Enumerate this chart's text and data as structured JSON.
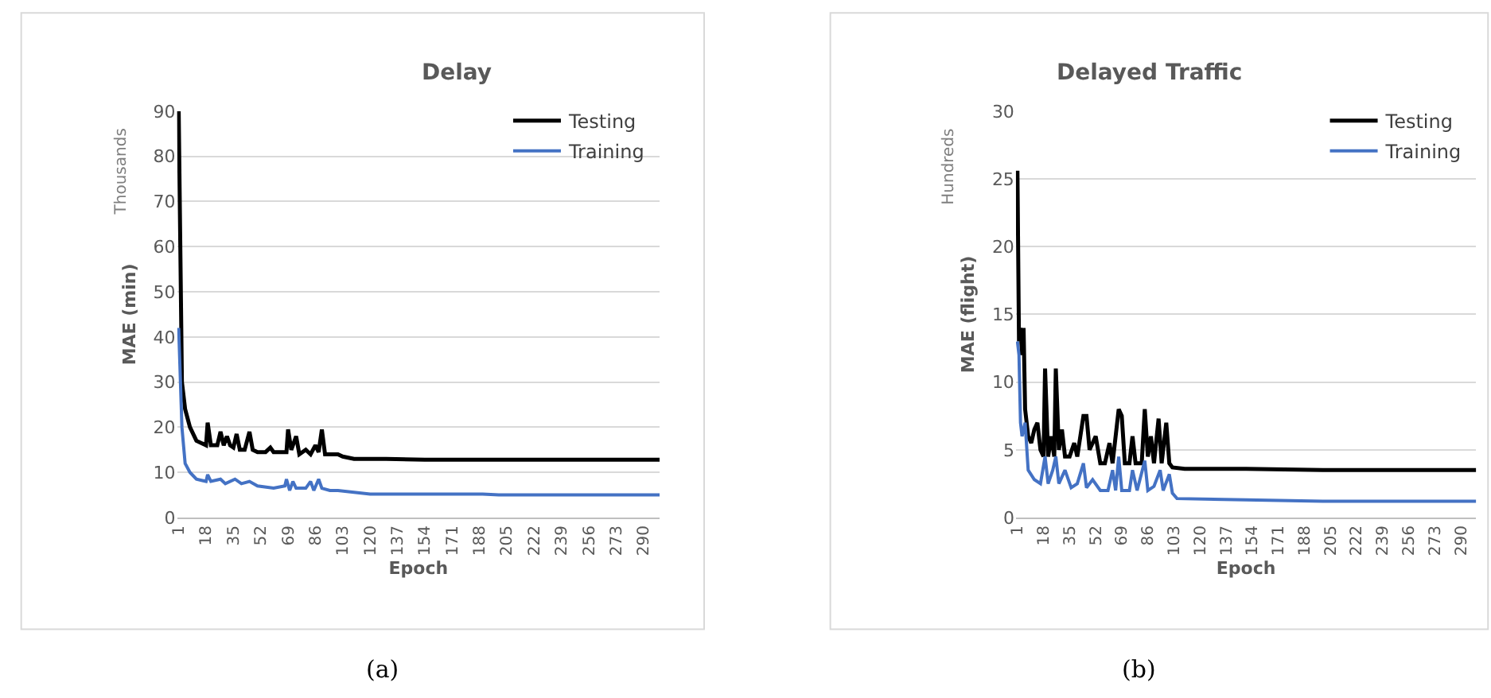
{
  "chart_data": [
    {
      "type": "line",
      "title": "Delay",
      "xlabel": "Epoch",
      "ylabel": "MAE (min)",
      "annotations": [
        "Thousands",
        "(a)"
      ],
      "xlim": [
        0,
        300
      ],
      "xticks": [
        1,
        18,
        35,
        52,
        69,
        86,
        103,
        120,
        137,
        154,
        171,
        188,
        205,
        222,
        239,
        256,
        273,
        290
      ],
      "ylim": [
        0,
        90
      ],
      "yticks": [
        0,
        10,
        20,
        30,
        40,
        50,
        60,
        70,
        80,
        90
      ],
      "grid": "y",
      "legend": "top right",
      "marker": "none",
      "line_style": "solid",
      "series": [
        {
          "name": "Testing",
          "color": "#000000",
          "x": [
            1,
            2,
            3,
            5,
            8,
            12,
            16,
            18,
            19,
            21,
            25,
            27,
            29,
            31,
            33,
            35,
            37,
            39,
            42,
            45,
            47,
            50,
            55,
            58,
            60,
            65,
            68,
            69,
            71,
            74,
            76,
            80,
            83,
            86,
            88,
            90,
            92,
            95,
            100,
            103,
            110,
            130,
            154,
            200,
            250,
            300
          ],
          "values": [
            90,
            44,
            30,
            24,
            20,
            17,
            16.5,
            16,
            21,
            16,
            16,
            19,
            16,
            18,
            16,
            15.5,
            18.5,
            15,
            15,
            19,
            15,
            14.5,
            14.5,
            15.5,
            14.5,
            14.5,
            14.5,
            19.5,
            15,
            18,
            14,
            15,
            14,
            16,
            14.5,
            19.5,
            14,
            14,
            14,
            13.5,
            13,
            13,
            12.8,
            12.8,
            12.8,
            12.8
          ]
        },
        {
          "name": "Training",
          "color": "#4472c4",
          "x": [
            1,
            2,
            3,
            5,
            8,
            12,
            18,
            19,
            21,
            27,
            30,
            36,
            40,
            45,
            50,
            60,
            67,
            68,
            70,
            72,
            74,
            80,
            83,
            85,
            88,
            90,
            95,
            100,
            110,
            120,
            190,
            200,
            300
          ],
          "values": [
            42,
            28,
            20,
            12,
            10,
            8.5,
            8,
            9.5,
            8,
            8.5,
            7.5,
            8.5,
            7.5,
            8,
            7,
            6.5,
            7,
            8.5,
            6,
            8,
            6.5,
            6.5,
            8,
            6,
            8.5,
            6.5,
            6,
            6,
            5.5,
            5.2,
            5.2,
            5,
            5
          ]
        }
      ]
    },
    {
      "type": "line",
      "title": "Delayed Traffic",
      "xlabel": "Epoch",
      "ylabel": "MAE (flight)",
      "annotations": [
        "Hundreds",
        "(b)"
      ],
      "xlim": [
        0,
        300
      ],
      "xticks": [
        1,
        18,
        35,
        52,
        69,
        86,
        103,
        120,
        137,
        154,
        171,
        188,
        205,
        222,
        239,
        256,
        273,
        290
      ],
      "ylim": [
        0,
        30
      ],
      "yticks": [
        0,
        5,
        10,
        15,
        20,
        25,
        30
      ],
      "grid": "y",
      "legend": "top right",
      "marker": "none",
      "line_style": "solid",
      "series": [
        {
          "name": "Testing",
          "color": "#000000",
          "x": [
            1,
            2,
            3,
            4,
            5,
            6,
            8,
            10,
            12,
            14,
            16,
            18,
            19,
            21,
            23,
            25,
            26,
            28,
            30,
            32,
            35,
            38,
            40,
            44,
            46,
            48,
            52,
            55,
            58,
            61,
            63,
            67,
            69,
            71,
            74,
            76,
            78,
            82,
            84,
            86,
            88,
            90,
            93,
            95,
            98,
            100,
            102,
            110,
            150,
            200,
            250,
            300
          ],
          "values": [
            25.6,
            13,
            14,
            12,
            14,
            8,
            6,
            5.5,
            6.5,
            7,
            5,
            4.5,
            11,
            4.5,
            6,
            4.5,
            11,
            5,
            6.5,
            4.5,
            4.5,
            5.5,
            4.5,
            7.5,
            7.5,
            5,
            6,
            4,
            4,
            5.5,
            4,
            8,
            7.5,
            4,
            4,
            6,
            4,
            4,
            8,
            4.5,
            6,
            4,
            7.3,
            4,
            7,
            4,
            3.7,
            3.6,
            3.6,
            3.5,
            3.5,
            3.5
          ]
        },
        {
          "name": "Training",
          "color": "#4472c4",
          "x": [
            1,
            2,
            3,
            4,
            6,
            8,
            12,
            16,
            19,
            21,
            24,
            26,
            28,
            32,
            36,
            40,
            44,
            46,
            50,
            55,
            60,
            63,
            65,
            67,
            69,
            74,
            76,
            79,
            84,
            86,
            90,
            94,
            96,
            100,
            102,
            105,
            150,
            200,
            300
          ],
          "values": [
            13,
            12,
            7,
            6,
            7,
            3.5,
            2.8,
            2.5,
            4.5,
            2.5,
            3.5,
            4.5,
            2.5,
            3.5,
            2.2,
            2.5,
            4,
            2.2,
            2.8,
            2,
            2,
            3.5,
            2,
            4.5,
            2,
            2,
            3.5,
            2,
            4.2,
            2,
            2.3,
            3.5,
            2,
            3.2,
            1.8,
            1.4,
            1.3,
            1.2,
            1.2
          ]
        }
      ]
    }
  ]
}
